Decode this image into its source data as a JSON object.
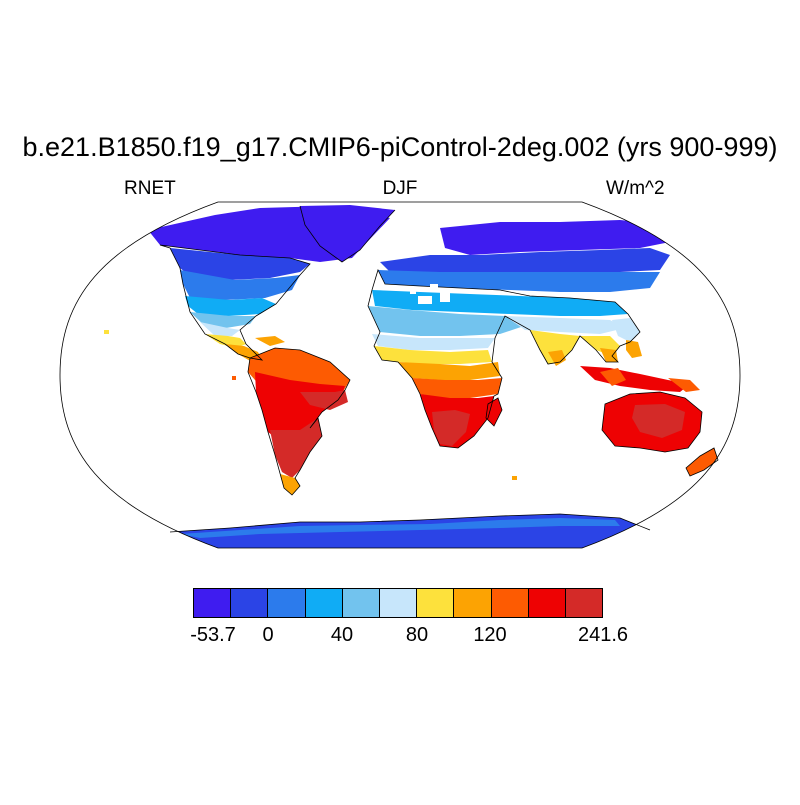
{
  "header": {
    "title": "b.e21.B1850.f19_g17.CMIP6-piControl-2deg.002 (yrs 900-999)",
    "variable": "RNET",
    "season": "DJF",
    "units": "W/m^2"
  },
  "map": {
    "projection": "Robinson",
    "field": "RNET",
    "land_only": true,
    "coastlines": true
  },
  "colorbar": {
    "colors": [
      "#3f1cf0",
      "#2b44e6",
      "#2c7bec",
      "#10acf5",
      "#72c3ee",
      "#c7e6fb",
      "#fde13c",
      "#fca303",
      "#fd5b02",
      "#ee0203",
      "#d42a28"
    ],
    "labels": [
      "-53.7",
      "0",
      "40",
      "80",
      "120",
      "241.6"
    ]
  }
}
